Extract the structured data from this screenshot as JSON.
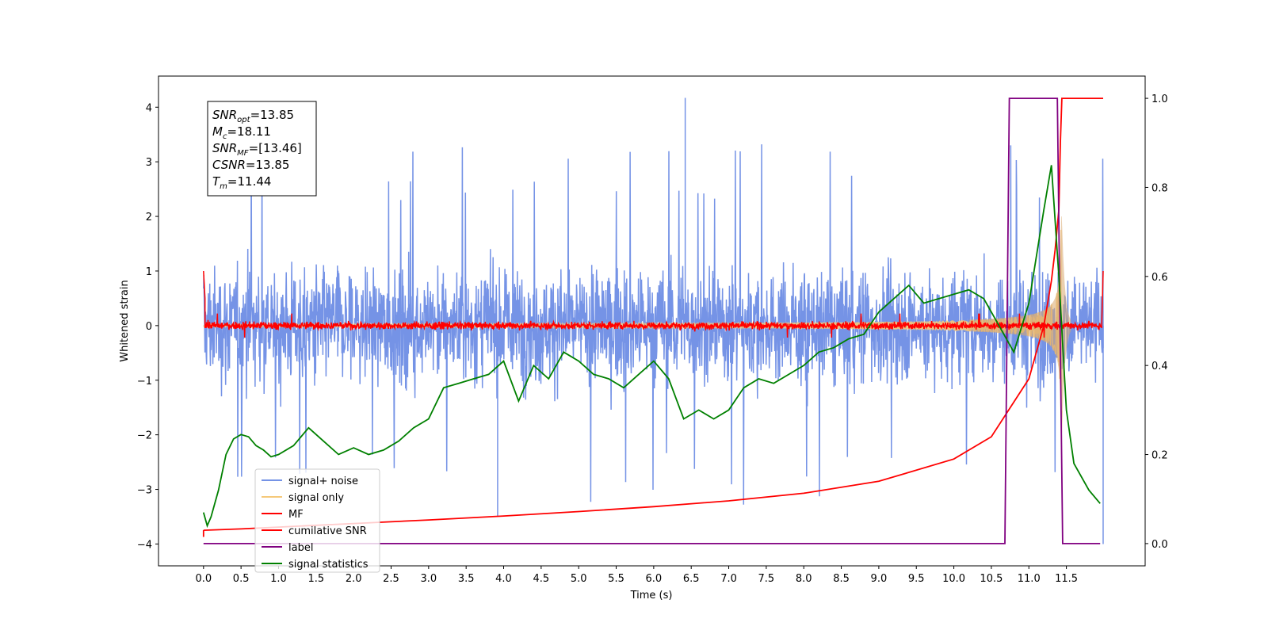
{
  "chart_data": {
    "type": "line",
    "xlabel": "Time (s)",
    "ylabel": "Whitened strain",
    "ylabel_right": "",
    "xlim": [
      -0.6,
      12.55
    ],
    "ylim": [
      -4.4,
      4.57
    ],
    "ylim_right": [
      -0.05,
      1.05
    ],
    "x_ticks": [
      0.0,
      0.5,
      1.0,
      1.5,
      2.0,
      2.5,
      3.0,
      3.5,
      4.0,
      4.5,
      5.0,
      5.5,
      6.0,
      6.5,
      7.0,
      7.5,
      8.0,
      8.5,
      9.0,
      9.5,
      10.0,
      10.5,
      11.0,
      11.5
    ],
    "x_tick_labels": [
      "0.0",
      "0.5",
      "1.0",
      "1.5",
      "2.0",
      "2.5",
      "3.0",
      "3.5",
      "4.0",
      "4.5",
      "5.0",
      "5.5",
      "6.0",
      "6.5",
      "7.0",
      "7.5",
      "8.0",
      "8.5",
      "9.0",
      "9.5",
      "10.0",
      "10.5",
      "11.0",
      "11.5"
    ],
    "y_ticks": [
      -4,
      -3,
      -2,
      -1,
      0,
      1,
      2,
      3,
      4
    ],
    "y_tick_labels": [
      "−4",
      "−3",
      "−2",
      "−1",
      "0",
      "1",
      "2",
      "3",
      "4"
    ],
    "y_right_ticks": [
      0.0,
      0.2,
      0.4,
      0.6,
      0.8,
      1.0
    ],
    "y_right_tick_labels": [
      "0.0",
      "0.2",
      "0.4",
      "0.6",
      "0.8",
      "1.0"
    ],
    "grid": false,
    "legend_position": "lower-left",
    "annotation": {
      "lines": [
        {
          "base": "SNR",
          "sub": "opt",
          "value": "=13.85"
        },
        {
          "base": "M",
          "sub": "c",
          "value": "=18.11"
        },
        {
          "base": "SNR",
          "sub": "MF",
          "value": "=[13.46]"
        },
        {
          "base": "CSNR",
          "sub": "",
          "value": "=13.85"
        },
        {
          "base": "T",
          "sub": "m",
          "value": "=11.44"
        }
      ]
    },
    "series": [
      {
        "name": "signal+ noise",
        "color": "#7593e6",
        "axis": "left",
        "kind": "noise",
        "x_range": [
          0.0,
          11.99
        ],
        "typical_upper": 1.6,
        "typical_lower": -1.7,
        "max": 4.17,
        "min": -3.5
      },
      {
        "name": "signal only",
        "color": "#f5c97a",
        "axis": "left",
        "kind": "chirp",
        "x_range": [
          0.0,
          11.44
        ],
        "peak_time": 11.44,
        "peak_amplitude": 2.0
      },
      {
        "name": "MF",
        "color": "#ff0000",
        "axis": "left",
        "kind": "mf",
        "x_range": [
          0.0,
          11.99
        ],
        "start_value": 1.0,
        "end_value": 1.0,
        "noise_level": 0.08
      },
      {
        "name": "cumilative SNR",
        "color": "#ff0000",
        "axis": "right",
        "x": [
          0.0,
          0.5,
          1.0,
          2.0,
          3.0,
          4.0,
          5.0,
          6.0,
          7.0,
          8.0,
          9.0,
          10.0,
          10.5,
          11.0,
          11.2,
          11.3,
          11.35,
          11.4,
          11.42,
          11.44,
          11.99
        ],
        "y": [
          0.03,
          0.033,
          0.037,
          0.045,
          0.053,
          0.062,
          0.072,
          0.083,
          0.096,
          0.113,
          0.14,
          0.19,
          0.24,
          0.37,
          0.49,
          0.59,
          0.66,
          0.75,
          0.9,
          1.0,
          1.0
        ]
      },
      {
        "name": "label",
        "color": "#800080",
        "axis": "right",
        "x": [
          0.0,
          10.68,
          10.74,
          11.38,
          11.45,
          11.95
        ],
        "y": [
          0.0,
          0.0,
          1.0,
          1.0,
          0.0,
          0.0
        ]
      },
      {
        "name": "signal statistics",
        "color": "#008000",
        "axis": "right",
        "x": [
          0.0,
          0.05,
          0.1,
          0.2,
          0.3,
          0.4,
          0.5,
          0.6,
          0.7,
          0.8,
          0.9,
          1.0,
          1.2,
          1.4,
          1.6,
          1.8,
          2.0,
          2.2,
          2.4,
          2.6,
          2.8,
          3.0,
          3.2,
          3.4,
          3.6,
          3.8,
          4.0,
          4.2,
          4.4,
          4.6,
          4.8,
          5.0,
          5.2,
          5.4,
          5.6,
          5.8,
          6.0,
          6.2,
          6.4,
          6.6,
          6.8,
          7.0,
          7.2,
          7.4,
          7.6,
          7.8,
          8.0,
          8.2,
          8.4,
          8.6,
          8.8,
          9.0,
          9.2,
          9.4,
          9.6,
          9.8,
          10.0,
          10.2,
          10.4,
          10.6,
          10.8,
          11.0,
          11.2,
          11.3,
          11.4,
          11.5,
          11.6,
          11.8,
          11.95
        ],
        "y": [
          0.07,
          0.04,
          0.06,
          0.12,
          0.2,
          0.235,
          0.245,
          0.24,
          0.22,
          0.21,
          0.195,
          0.2,
          0.22,
          0.26,
          0.23,
          0.2,
          0.215,
          0.2,
          0.21,
          0.23,
          0.26,
          0.28,
          0.35,
          0.36,
          0.37,
          0.38,
          0.41,
          0.32,
          0.4,
          0.37,
          0.43,
          0.41,
          0.38,
          0.37,
          0.35,
          0.38,
          0.41,
          0.37,
          0.28,
          0.3,
          0.28,
          0.3,
          0.35,
          0.37,
          0.36,
          0.38,
          0.4,
          0.43,
          0.44,
          0.46,
          0.47,
          0.52,
          0.55,
          0.58,
          0.54,
          0.55,
          0.56,
          0.57,
          0.55,
          0.49,
          0.43,
          0.54,
          0.75,
          0.85,
          0.6,
          0.3,
          0.18,
          0.12,
          0.09
        ]
      }
    ]
  }
}
